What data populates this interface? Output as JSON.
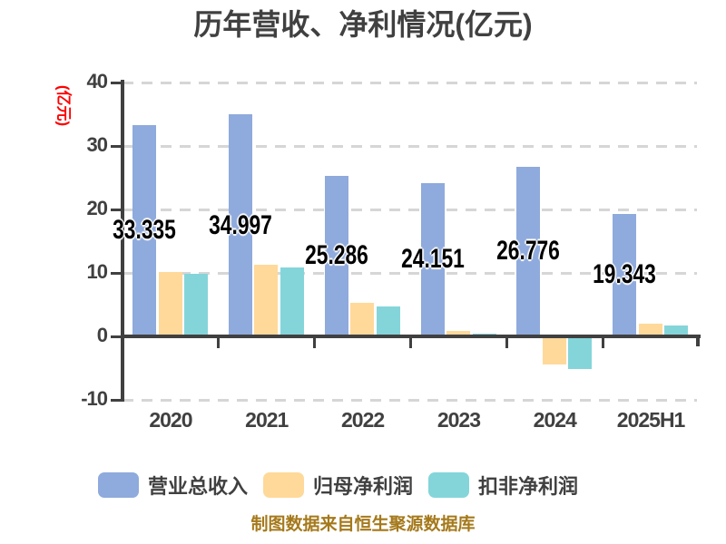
{
  "chart_data": {
    "type": "bar",
    "title": "历年营收、净利情况(亿元)",
    "ylabel": "(亿元)",
    "source_note": "制图数据来自恒生聚源数据库",
    "categories": [
      "2020",
      "2021",
      "2022",
      "2023",
      "2024",
      "2025H1"
    ],
    "series": [
      {
        "name": "营业总收入",
        "color": "#8FAADC",
        "values": [
          33.335,
          34.997,
          25.286,
          24.151,
          26.776,
          19.343
        ],
        "labels": [
          "33.335",
          "34.997",
          "25.286",
          "24.151",
          "26.776",
          "19.343"
        ]
      },
      {
        "name": "归母净利润",
        "color": "#FFD99A",
        "values": [
          10.2,
          11.3,
          5.3,
          0.9,
          -4.1,
          2.0
        ]
      },
      {
        "name": "扣非净利润",
        "color": "#84D5DA",
        "values": [
          9.8,
          10.9,
          4.7,
          0.4,
          -4.9,
          1.7
        ]
      }
    ],
    "ylim": [
      -10,
      40
    ],
    "yticks": [
      40,
      30,
      20,
      10,
      0,
      -10
    ],
    "ytick_labels": [
      "40",
      "30",
      "20",
      "10",
      "0",
      "-10"
    ],
    "grid": "dashed-horizontal",
    "legend_position": "bottom",
    "colors": {
      "text_dark": "#404040",
      "gridline": "#D6D6D6",
      "axis_title_red": "#FF0000",
      "source_note_gold": "#A5791B",
      "background": "#FFFFFF"
    }
  }
}
